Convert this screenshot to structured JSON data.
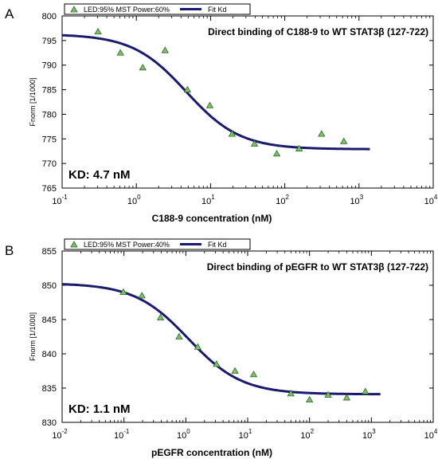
{
  "colors": {
    "fit_line": "#1a1a6e",
    "marker_fill": "#7fbf6a",
    "marker_stroke": "#2e6b2a",
    "axis": "#000000"
  },
  "chart_data": [
    {
      "panel_label": "A",
      "type": "scatter",
      "title": "Direct binding of C188-9 to WT STAT3β  (127-722)",
      "annotation": "KD: 4.7 nM",
      "xlabel": "C188-9 concentration (nM)",
      "ylabel": "Fnorm [1/1000]",
      "x_scale": "log",
      "xlim": [
        0.1,
        10000
      ],
      "ylim": [
        765,
        800
      ],
      "x_ticks": [
        0.1,
        1,
        10,
        100,
        1000,
        10000
      ],
      "x_tick_labels": [
        [
          "10",
          "-1"
        ],
        [
          "10",
          "0"
        ],
        [
          "10",
          "1"
        ],
        [
          "10",
          "2"
        ],
        [
          "10",
          "3"
        ],
        [
          "10",
          "4"
        ]
      ],
      "y_ticks": [
        765,
        770,
        775,
        780,
        785,
        790,
        795,
        800
      ],
      "y_tick_labels": [
        "765",
        "770",
        "775",
        "780",
        "785",
        "790",
        "795",
        "800"
      ],
      "legend": {
        "position": "top-left",
        "points_label": "LED:95% MST Power:60%",
        "line_label": "Fit Kd"
      },
      "series": [
        {
          "name": "LED:95% MST Power:60%",
          "kind": "points",
          "x": [
            0.305,
            0.61,
            1.22,
            2.44,
            4.88,
            9.77,
            19.5,
            39.1,
            78.1,
            156,
            313,
            625
          ],
          "y": [
            796.8,
            792.5,
            789.5,
            793.0,
            785.0,
            781.8,
            776.0,
            774.0,
            772.0,
            773.0,
            776.0,
            774.5
          ]
        },
        {
          "name": "Fit Kd",
          "kind": "fit",
          "model": "sigmoid",
          "kd": 4.7,
          "top": 796.3,
          "bottom": 772.9,
          "hill": 1.2,
          "x_range": [
            0.1,
            1400
          ]
        }
      ]
    },
    {
      "panel_label": "B",
      "type": "scatter",
      "title": "Direct binding of pEGFR to WT STAT3β  (127-722)",
      "annotation": "KD: 1.1 nM",
      "xlabel": "pEGFR concentration (nM)",
      "ylabel": "Fnorm [1/1000]",
      "x_scale": "log",
      "xlim": [
        0.01,
        10000
      ],
      "ylim": [
        830,
        855
      ],
      "x_ticks": [
        0.01,
        0.1,
        1,
        10,
        100,
        1000,
        10000
      ],
      "x_tick_labels": [
        [
          "10",
          "-2"
        ],
        [
          "10",
          "-1"
        ],
        [
          "10",
          "0"
        ],
        [
          "10",
          "1"
        ],
        [
          "10",
          "2"
        ],
        [
          "10",
          "3"
        ],
        [
          "10",
          "4"
        ]
      ],
      "y_ticks": [
        830,
        835,
        840,
        845,
        850,
        855
      ],
      "y_tick_labels": [
        "830",
        "835",
        "840",
        "845",
        "850",
        "855"
      ],
      "legend": {
        "position": "top-left",
        "points_label": "LED:95% MST Power:40%",
        "line_label": "Fit Kd"
      },
      "series": [
        {
          "name": "LED:95% MST Power:40%",
          "kind": "points",
          "x": [
            0.098,
            0.195,
            0.39,
            0.78,
            1.56,
            3.13,
            6.25,
            12.5,
            50,
            100,
            200,
            400,
            800
          ],
          "y": [
            849.0,
            848.5,
            845.3,
            842.5,
            841.0,
            838.5,
            837.5,
            837.0,
            834.2,
            833.3,
            834.0,
            833.6,
            834.5
          ]
        },
        {
          "name": "Fit Kd",
          "kind": "fit",
          "model": "sigmoid",
          "kd": 1.1,
          "top": 850.3,
          "bottom": 834.1,
          "hill": 1.0,
          "x_range": [
            0.01,
            1400
          ]
        }
      ]
    }
  ]
}
